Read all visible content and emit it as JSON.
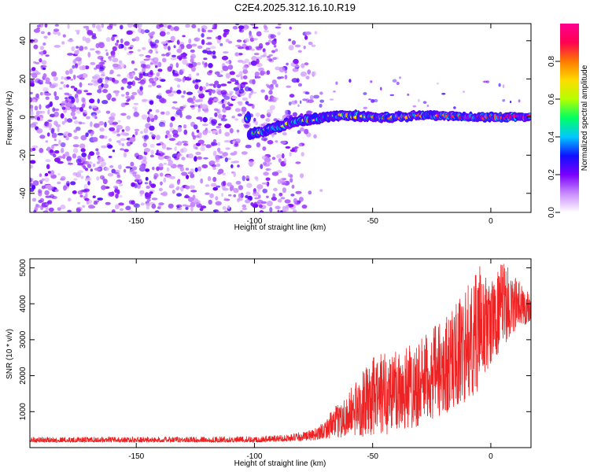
{
  "title": "C2E4.2025.312.16.10.R19",
  "chart_data": [
    {
      "type": "heatmap",
      "name": "spectrogram",
      "xlabel": "Height of straight line (km)",
      "ylabel": "Frequency (Hz)",
      "xlim": [
        -195,
        17
      ],
      "ylim": [
        -50,
        49
      ],
      "xticks": [
        -150,
        -100,
        -50,
        0
      ],
      "yticks": [
        -40,
        -20,
        0,
        20,
        40
      ],
      "colorbar": {
        "label": "Normalized spectral amplitude",
        "range": [
          0.0,
          1.0
        ],
        "ticks": [
          0.0,
          0.2,
          0.4,
          0.6,
          0.8
        ],
        "colors": [
          "#ffffff",
          "#c98bff",
          "#7a00ff",
          "#1010ff",
          "#00c8ff",
          "#00ff64",
          "#b4ff00",
          "#ffdc00",
          "#ff7a00",
          "#ff0050",
          "#ff0090"
        ]
      },
      "signal_track": {
        "description_points": [
          {
            "x": -102,
            "y": -9
          },
          {
            "x": -95,
            "y": -7
          },
          {
            "x": -85,
            "y": -3
          },
          {
            "x": -75,
            "y": -1
          },
          {
            "x": -60,
            "y": 1
          },
          {
            "x": -50,
            "y": 0
          },
          {
            "x": -40,
            "y": 0
          },
          {
            "x": -30,
            "y": 1
          },
          {
            "x": -20,
            "y": 1
          },
          {
            "x": -10,
            "y": 0
          },
          {
            "x": 0,
            "y": 0
          },
          {
            "x": 10,
            "y": 0
          },
          {
            "x": 17,
            "y": 0
          }
        ],
        "noise_extent_x": [
          -195,
          -75
        ]
      }
    },
    {
      "type": "line",
      "name": "snr",
      "xlabel": "Height of straight line (km)",
      "ylabel": "SNR (10 * v/v)",
      "xlim": [
        -195,
        17
      ],
      "ylim": [
        0,
        5250
      ],
      "xticks": [
        -150,
        -100,
        -50,
        0
      ],
      "yticks": [
        1000,
        2000,
        3000,
        4000,
        5000
      ],
      "color": "#ee2222",
      "series": [
        {
          "name": "SNR",
          "envelope": {
            "x": [
              -195,
              -150,
              -100,
              -85,
              -75,
              -70,
              -60,
              -50,
              -40,
              -30,
              -20,
              -10,
              -5,
              0,
              5,
              10,
              17
            ],
            "low": [
              150,
              150,
              150,
              180,
              200,
              250,
              300,
              300,
              400,
              600,
              900,
              1300,
              1600,
              2300,
              2800,
              3200,
              3500
            ],
            "high": [
              300,
              300,
              320,
              380,
              500,
              800,
              1600,
              2500,
              2900,
              3000,
              3600,
              4500,
              5100,
              4600,
              5200,
              4800,
              4300
            ]
          }
        }
      ]
    }
  ]
}
